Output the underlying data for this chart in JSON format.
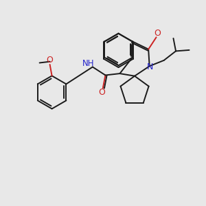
{
  "bg_color": "#e8e8e8",
  "bond_color": "#1a1a1a",
  "n_color": "#2222cc",
  "o_color": "#cc2222",
  "lw": 1.4,
  "xlim": [
    0,
    10
  ],
  "ylim": [
    0,
    10
  ]
}
